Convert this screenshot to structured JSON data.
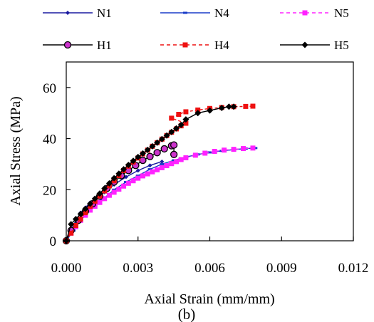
{
  "chart_data": {
    "type": "line",
    "title": "",
    "xlabel": "Axial Strain (mm/mm)",
    "ylabel": "Axial Stress (MPa)",
    "caption": "(b)",
    "xlim": [
      0,
      0.012
    ],
    "ylim": [
      0,
      70
    ],
    "x_ticks": [
      "0.000",
      "0.003",
      "0.006",
      "0.009",
      "0.012"
    ],
    "y_ticks": [
      "0",
      "20",
      "40",
      "60"
    ],
    "x_tick_values": [
      0,
      0.003,
      0.006,
      0.009,
      0.012
    ],
    "y_tick_values": [
      0,
      20,
      40,
      60
    ],
    "grid": false,
    "legend_position": "top",
    "series": [
      {
        "name": "N1",
        "color": "#1a1aa0",
        "line": "solid",
        "marker": "diamond-small",
        "x": [
          0,
          0.0002,
          0.0004,
          0.0006,
          0.0008,
          0.001,
          0.0013,
          0.0016,
          0.002,
          0.0025,
          0.003,
          0.0035,
          0.004
        ],
        "y": [
          0,
          4,
          8,
          11,
          13,
          15,
          17,
          19,
          22,
          25,
          27.5,
          29.5,
          31
        ]
      },
      {
        "name": "N4",
        "color": "#1a3cc8",
        "line": "solid",
        "marker": "dash-small",
        "x": [
          0,
          0.0003,
          0.0006,
          0.001,
          0.0015,
          0.002,
          0.0025,
          0.003,
          0.0035,
          0.004,
          0.0045,
          0.005,
          0.0055,
          0.006,
          0.0065,
          0.007,
          0.0075,
          0.0079
        ],
        "y": [
          0,
          4,
          8,
          12,
          16,
          20,
          23,
          25.5,
          28,
          30,
          31.5,
          32.8,
          33.8,
          34.6,
          35.2,
          35.7,
          36.1,
          36.3
        ]
      },
      {
        "name": "N5",
        "color": "#ff22ff",
        "line": "dashed",
        "marker": "square",
        "x": [
          0,
          0.0002,
          0.0004,
          0.0006,
          0.0008,
          0.001,
          0.0012,
          0.0014,
          0.0016,
          0.0018,
          0.002,
          0.0022,
          0.0024,
          0.0026,
          0.0028,
          0.003,
          0.0032,
          0.0034,
          0.0036,
          0.0038,
          0.004,
          0.0042,
          0.0044,
          0.0046,
          0.0048,
          0.005,
          0.0054,
          0.0058,
          0.0062,
          0.0066,
          0.007,
          0.0074,
          0.0078
        ],
        "y": [
          0,
          3,
          5.5,
          8,
          10,
          12,
          13.5,
          15,
          16.5,
          17.8,
          19,
          20.2,
          21.4,
          22.5,
          23.5,
          24.5,
          25.4,
          26.2,
          27,
          27.8,
          28.6,
          29.4,
          30.2,
          31,
          31.8,
          32.5,
          33.5,
          34.3,
          35,
          35.5,
          35.8,
          36.1,
          36.3
        ]
      },
      {
        "name": "H1",
        "color": "#000000",
        "line": "solid",
        "marker": "circle",
        "marker_fill": "#cc33cc",
        "x": [
          0,
          0.0002,
          0.0005,
          0.0008,
          0.0011,
          0.0014,
          0.0017,
          0.002,
          0.0023,
          0.0026,
          0.0029,
          0.0032,
          0.0035,
          0.0038,
          0.0041,
          0.0044,
          0.0045,
          0.0045
        ],
        "y": [
          0,
          4,
          8,
          11.5,
          14.5,
          17.5,
          20.5,
          23,
          25.5,
          27.5,
          29.5,
          31.5,
          33,
          34.5,
          36,
          37.2,
          37.5,
          33.8
        ]
      },
      {
        "name": "H4",
        "color": "#ee1111",
        "line": "dashed",
        "marker": "square",
        "x": [
          0,
          0.0002,
          0.0004,
          0.0006,
          0.0008,
          0.001,
          0.0012,
          0.0014,
          0.0016,
          0.0018,
          0.002,
          0.0022,
          0.0024,
          0.0026,
          0.0028,
          0.003,
          0.0032,
          0.0034,
          0.0036,
          0.0038,
          0.004,
          0.0042,
          0.0044,
          0.0046,
          0.0048,
          0.005,
          0.0044,
          0.0047,
          0.005,
          0.0055,
          0.006,
          0.0065,
          0.007,
          0.0075,
          0.0078
        ],
        "y": [
          0,
          3,
          6,
          8.5,
          11,
          13.5,
          15.5,
          17.5,
          19.5,
          21.5,
          23.5,
          25.5,
          27.5,
          29.2,
          30.8,
          32.4,
          34,
          35.5,
          37,
          38.4,
          39.8,
          41.2,
          42.5,
          43.8,
          45,
          46,
          48,
          49.5,
          50.5,
          51.2,
          51.8,
          52.2,
          52.5,
          52.6,
          52.7
        ]
      },
      {
        "name": "H5",
        "color": "#000000",
        "line": "solid",
        "marker": "diamond",
        "x": [
          0,
          0.0002,
          0.0004,
          0.0006,
          0.0008,
          0.001,
          0.0012,
          0.0014,
          0.0016,
          0.0018,
          0.002,
          0.0022,
          0.0024,
          0.0026,
          0.0028,
          0.003,
          0.0032,
          0.0034,
          0.0036,
          0.0038,
          0.004,
          0.0042,
          0.0044,
          0.0046,
          0.0048,
          0.005,
          0.0055,
          0.006,
          0.0065,
          0.0068,
          0.007
        ],
        "y": [
          0,
          6.5,
          8.5,
          10.5,
          12.5,
          14.5,
          16.5,
          18.5,
          20.5,
          22.5,
          24.5,
          26.3,
          28,
          29.7,
          31.3,
          32.8,
          34.2,
          35.6,
          37,
          38.4,
          39.8,
          41.2,
          42.6,
          44,
          45.4,
          47.5,
          50,
          51,
          52,
          52.5,
          52.5
        ]
      }
    ]
  }
}
